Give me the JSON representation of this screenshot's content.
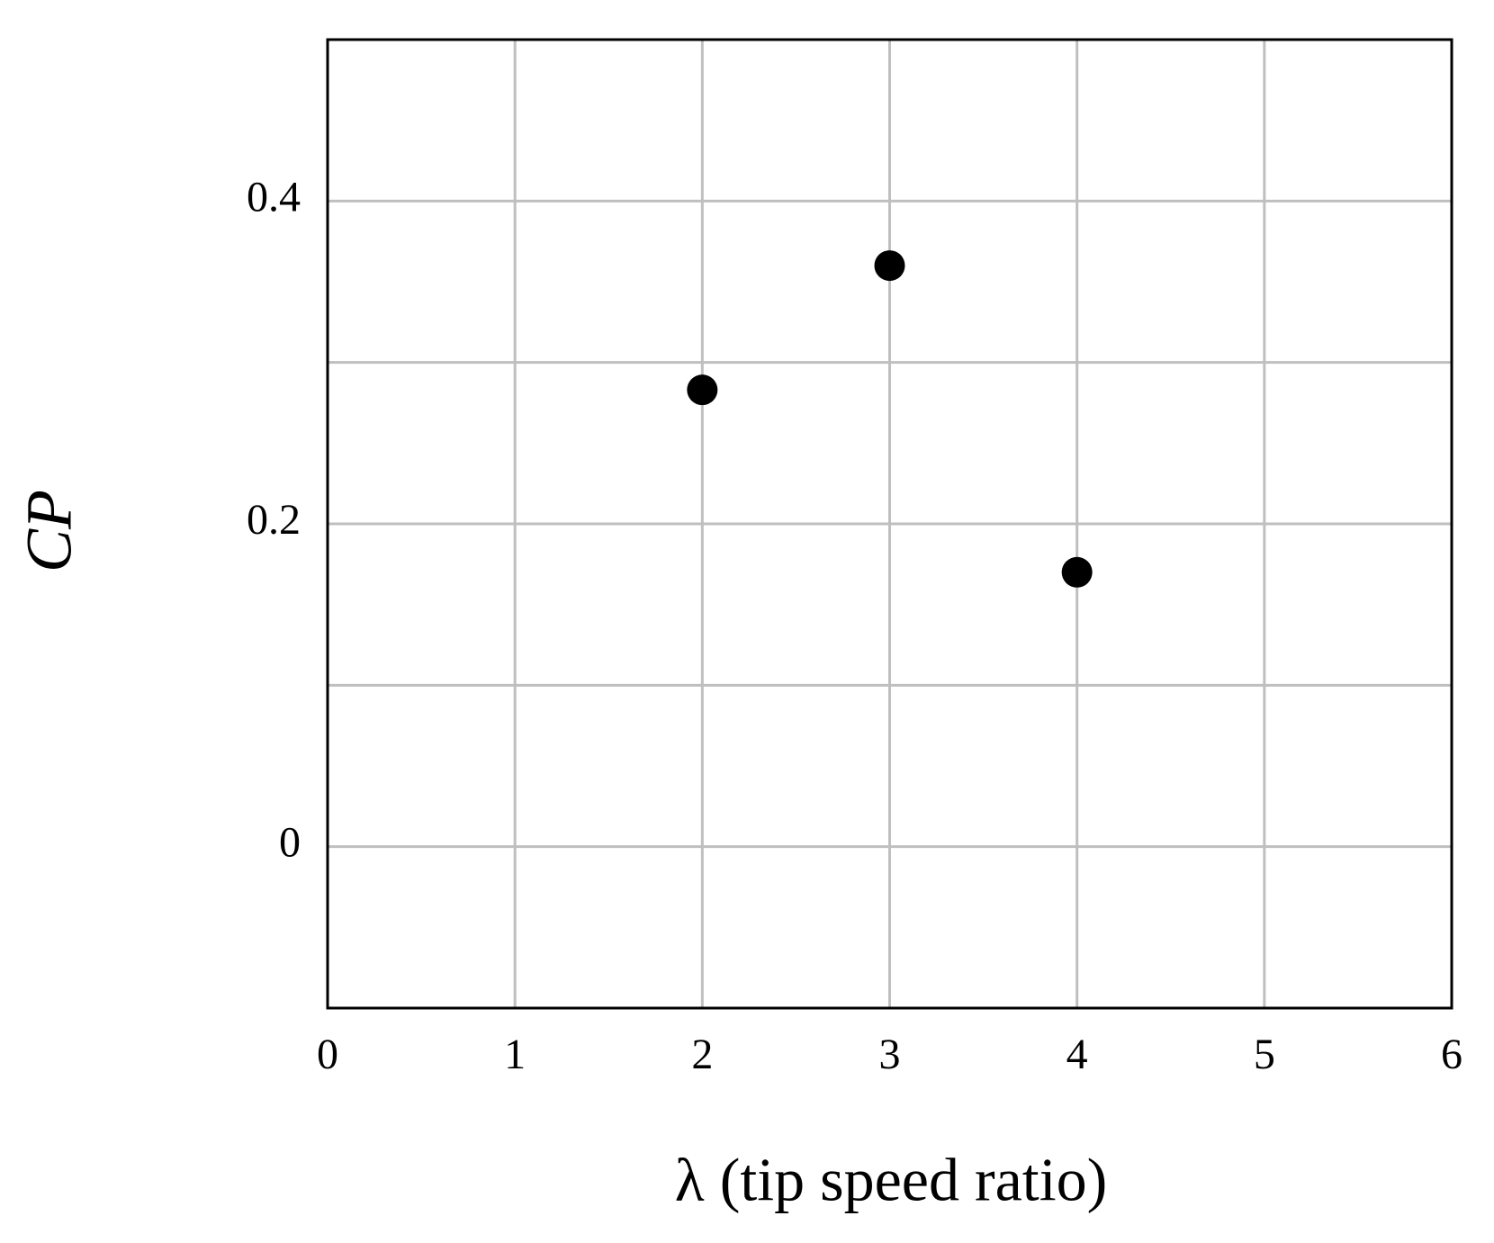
{
  "chart_data": {
    "type": "scatter",
    "xlabel": "λ (tip speed ratio)",
    "ylabel": "CP",
    "x": [
      2,
      3,
      4
    ],
    "values": [
      0.283,
      0.36,
      0.17
    ],
    "color": "#000000",
    "xlim": [
      0,
      6
    ],
    "xticks": [
      0,
      1,
      2,
      3,
      4,
      5,
      6
    ],
    "ylim": [
      -0.1,
      0.5
    ],
    "yticks": [
      0,
      0.2,
      0.4
    ],
    "y_minor_ticks": [
      0.1,
      0.3
    ],
    "grid": true
  }
}
